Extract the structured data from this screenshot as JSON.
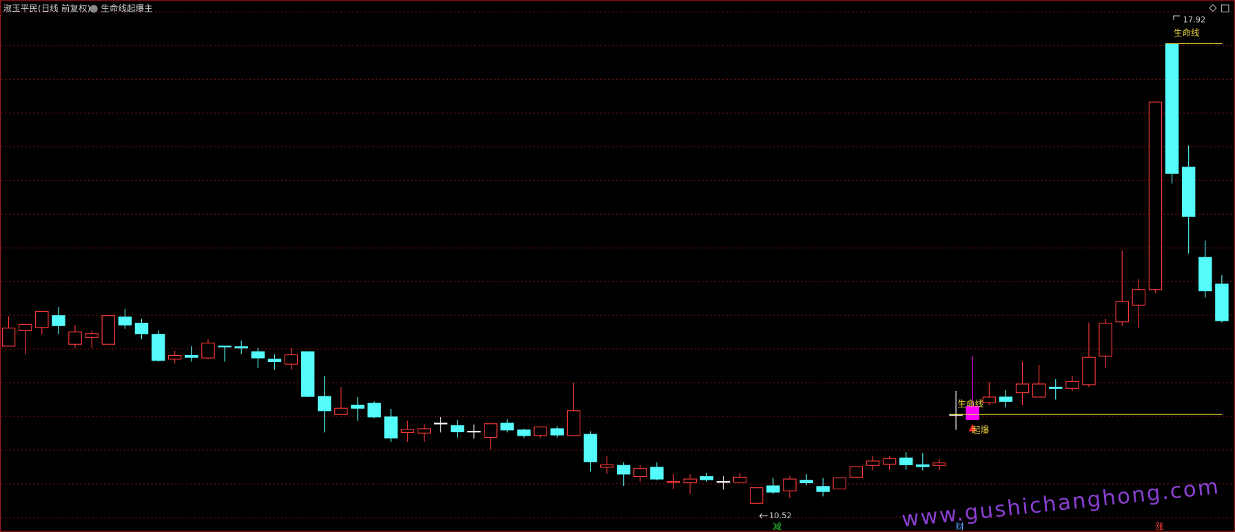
{
  "header": {
    "title": "淑玉平民(日线 前复权)",
    "indicator": "生命线起爆主"
  },
  "chart_data": {
    "type": "candlestick",
    "candles": [
      [
        13.05,
        13.53,
        13.05,
        13.34
      ],
      [
        13.3,
        13.4,
        12.92,
        13.4
      ],
      [
        13.35,
        13.61,
        13.24,
        13.61
      ],
      [
        13.54,
        13.68,
        13.24,
        13.38
      ],
      [
        13.08,
        13.39,
        13.02,
        13.28
      ],
      [
        13.19,
        13.3,
        13.02,
        13.25
      ],
      [
        13.08,
        13.54,
        13.08,
        13.54
      ],
      [
        13.52,
        13.65,
        13.33,
        13.39
      ],
      [
        13.42,
        13.49,
        13.16,
        13.25
      ],
      [
        13.24,
        13.3,
        12.8,
        12.82
      ],
      [
        12.84,
        12.97,
        12.77,
        12.9
      ],
      [
        12.9,
        13.05,
        12.8,
        12.87
      ],
      [
        12.86,
        13.16,
        12.84,
        13.1
      ],
      [
        13.05,
        13.05,
        12.8,
        13.04
      ],
      [
        13.04,
        13.14,
        12.92,
        13.02
      ],
      [
        12.96,
        13.02,
        12.7,
        12.86
      ],
      [
        12.84,
        12.92,
        12.67,
        12.8
      ],
      [
        12.76,
        13.02,
        12.67,
        12.91
      ],
      [
        12.96,
        12.96,
        12.23,
        12.24
      ],
      [
        12.24,
        12.57,
        11.66,
        12.01
      ],
      [
        11.95,
        12.39,
        11.95,
        12.05
      ],
      [
        12.1,
        12.23,
        11.85,
        12.05
      ],
      [
        12.13,
        12.16,
        11.89,
        11.91
      ],
      [
        11.91,
        12.04,
        11.51,
        11.57
      ],
      [
        11.66,
        11.85,
        11.51,
        11.71
      ],
      [
        11.65,
        11.79,
        11.51,
        11.72
      ],
      [
        11.81,
        11.91,
        11.66,
        11.81
      ],
      [
        11.77,
        11.86,
        11.58,
        11.67
      ],
      [
        11.68,
        11.79,
        11.56,
        11.68
      ],
      [
        11.58,
        11.8,
        11.39,
        11.8
      ],
      [
        11.81,
        11.87,
        11.66,
        11.7
      ],
      [
        11.7,
        11.72,
        11.57,
        11.61
      ],
      [
        11.61,
        11.75,
        11.57,
        11.75
      ],
      [
        11.72,
        11.76,
        11.58,
        11.62
      ],
      [
        11.61,
        12.46,
        11.61,
        12.01
      ],
      [
        11.63,
        11.68,
        11.03,
        11.19
      ],
      [
        11.1,
        11.28,
        10.99,
        11.14
      ],
      [
        11.13,
        11.18,
        10.8,
        10.99
      ],
      [
        10.95,
        11.13,
        10.87,
        11.08
      ],
      [
        11.1,
        11.18,
        10.89,
        10.91
      ],
      [
        10.86,
        10.99,
        10.75,
        10.87
      ],
      [
        10.85,
        10.99,
        10.67,
        10.91
      ],
      [
        10.95,
        11.01,
        10.87,
        10.9
      ],
      [
        10.87,
        10.96,
        10.74,
        10.87
      ],
      [
        10.86,
        11.01,
        10.85,
        10.94
      ],
      [
        10.52,
        10.77,
        10.52,
        10.77
      ],
      [
        10.8,
        10.93,
        10.67,
        10.7
      ],
      [
        10.72,
        10.96,
        10.6,
        10.91
      ],
      [
        10.89,
        10.99,
        10.81,
        10.85
      ],
      [
        10.79,
        10.93,
        10.63,
        10.71
      ],
      [
        10.75,
        10.93,
        10.75,
        10.93
      ],
      [
        10.94,
        11.11,
        10.94,
        11.11
      ],
      [
        11.13,
        11.28,
        11.05,
        11.2
      ],
      [
        11.15,
        11.28,
        11.06,
        11.24
      ],
      [
        11.25,
        11.34,
        11.06,
        11.14
      ],
      [
        11.14,
        11.33,
        11.05,
        11.11
      ],
      [
        11.13,
        11.23,
        11.05,
        11.17
      ],
      [
        11.95,
        12.33,
        11.7,
        11.95
      ],
      [
        11.87,
        12.89,
        11.87,
        12.08
      ],
      [
        12.14,
        12.47,
        12.1,
        12.23
      ],
      [
        12.23,
        12.34,
        12.06,
        12.16
      ],
      [
        12.3,
        12.8,
        12.1,
        12.44
      ],
      [
        12.23,
        12.75,
        12.23,
        12.44
      ],
      [
        12.39,
        12.52,
        12.19,
        12.37
      ],
      [
        12.37,
        12.57,
        12.33,
        12.48
      ],
      [
        12.43,
        13.43,
        12.39,
        12.87
      ],
      [
        12.89,
        13.49,
        12.7,
        13.42
      ],
      [
        13.44,
        14.59,
        13.37,
        13.77
      ],
      [
        13.71,
        14.13,
        13.35,
        13.96
      ],
      [
        13.96,
        16.98,
        13.91,
        16.98
      ],
      [
        17.92,
        17.92,
        15.67,
        15.83
      ],
      [
        15.93,
        16.28,
        14.54,
        15.14
      ],
      [
        14.48,
        14.75,
        13.83,
        13.94
      ],
      [
        14.05,
        14.19,
        13.43,
        13.46
      ]
    ],
    "ylim": [
      10.06,
      18.62
    ],
    "colors": {
      "up": "#ff3a3a",
      "down": "#54fcfc",
      "flat": "#ffffff",
      "signal": "#ff00ff",
      "level": "#e8d040"
    },
    "levels": [
      11.95,
      17.92
    ],
    "level_label": "生命线",
    "signal_label": "起爆",
    "markers": [
      {
        "label": "减",
        "color": "#30d030"
      },
      {
        "label": "财",
        "color": "#5aa0ff"
      },
      {
        "label": "涨",
        "color": "#ff3a3a"
      }
    ],
    "watermark": "www.gushichanghong.com"
  }
}
